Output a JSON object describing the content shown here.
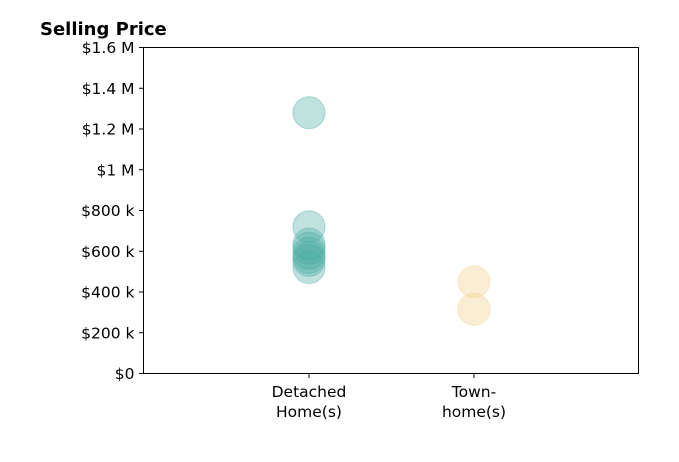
{
  "chart_data": {
    "type": "scatter",
    "title": "Selling Price",
    "xlabel": "",
    "ylabel": "",
    "categories": [
      [
        "Detached",
        "Home(s)"
      ],
      [
        "Town-",
        "home(s)"
      ]
    ],
    "ylim": [
      0,
      1600000
    ],
    "yticks": [
      {
        "value": 0,
        "label": "$0"
      },
      {
        "value": 200000,
        "label": "$200 k"
      },
      {
        "value": 400000,
        "label": "$400 k"
      },
      {
        "value": 600000,
        "label": "$600 k"
      },
      {
        "value": 800000,
        "label": "$800 k"
      },
      {
        "value": 1000000,
        "label": "$1 M"
      },
      {
        "value": 1200000,
        "label": "$1.2 M"
      },
      {
        "value": 1400000,
        "label": "$1.4 M"
      },
      {
        "value": 1600000,
        "label": "$1.6 M"
      }
    ],
    "grid": false,
    "series": [
      {
        "category": 0,
        "color": "#4BADA4",
        "values": [
          1280000,
          720000,
          635000,
          615000,
          590000,
          570000,
          555000,
          520000
        ]
      },
      {
        "category": 1,
        "color": "#EDCF85",
        "values": [
          450000,
          315000
        ]
      }
    ]
  }
}
